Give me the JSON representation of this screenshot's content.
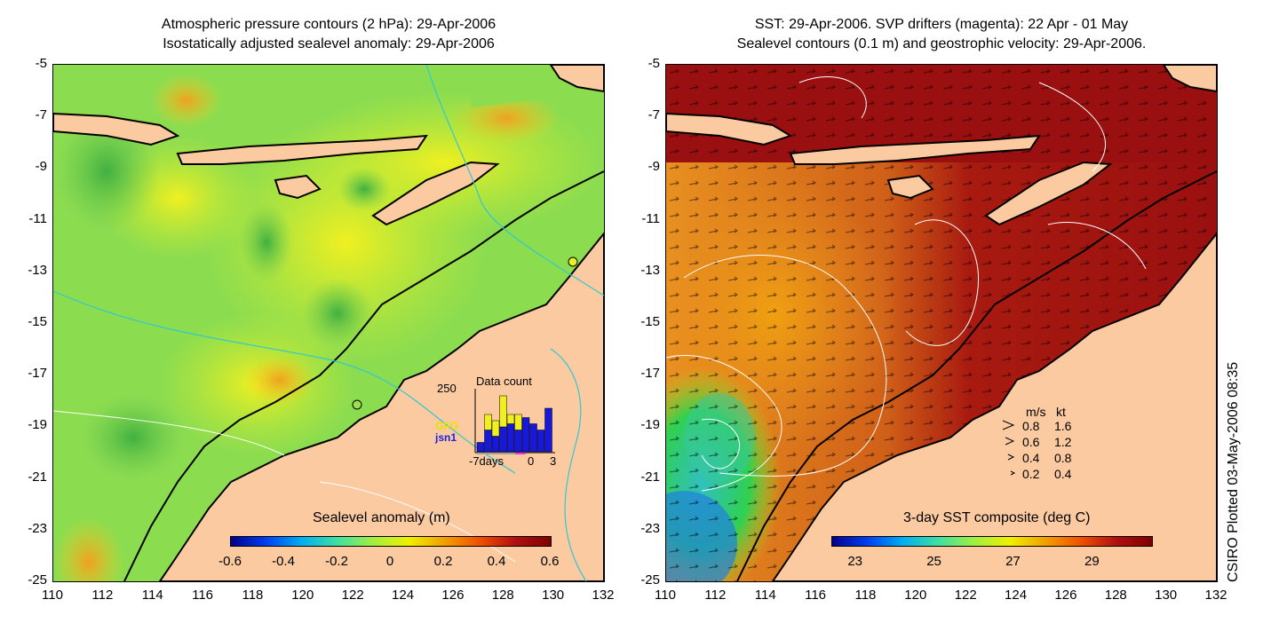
{
  "left_panel": {
    "title_line1": "Atmospheric pressure contours (2 hPa): 29-Apr-2006",
    "title_line2": "Isostatically adjusted sealevel anomaly: 29-Apr-2006",
    "colorbar_label": "Sealevel anomaly (m)",
    "colorbar_ticks": [
      "-0.6",
      "-0.4",
      "-0.2",
      "0",
      "0.2",
      "0.4",
      "0.6"
    ],
    "inset": {
      "title": "Data count",
      "y_max_label": "250",
      "x_labels": [
        "-7days",
        "0",
        "3"
      ],
      "legend": [
        "GFO",
        "jsn1"
      ],
      "bars_jsn1": [
        0.15,
        0.35,
        0.25,
        0.4,
        0.45,
        0.35,
        0.55,
        0.45,
        0.35,
        0.7
      ],
      "bars_gfo": [
        0.0,
        0.25,
        0.25,
        0.5,
        0.15,
        0.25,
        0.0,
        0.0,
        0.0,
        0.0
      ]
    }
  },
  "right_panel": {
    "title_line1": "SST: 29-Apr-2006. SVP drifters (magenta): 22 Apr - 01 May",
    "title_line2": "Sealevel contours (0.1 m) and geostrophic velocity: 29-Apr-2006.",
    "colorbar_label": "3-day SST composite (deg C)",
    "colorbar_ticks": [
      "23",
      "25",
      "27",
      "29"
    ],
    "speed_legend": {
      "header_ms": "m/s",
      "header_kt": "kt",
      "rows": [
        {
          "ms": "0.8",
          "kt": "1.6"
        },
        {
          "ms": "0.6",
          "kt": "1.2"
        },
        {
          "ms": "0.4",
          "kt": "0.8"
        },
        {
          "ms": "0.2",
          "kt": "0.4"
        }
      ]
    }
  },
  "y_ticks": [
    "-5",
    "-7",
    "-9",
    "-11",
    "-13",
    "-15",
    "-17",
    "-19",
    "-21",
    "-23",
    "-25"
  ],
  "x_ticks": [
    "110",
    "112",
    "114",
    "116",
    "118",
    "120",
    "122",
    "124",
    "126",
    "128",
    "130",
    "132"
  ],
  "credit": "CSIRO Plotted 03-May-2006 08:35",
  "colors": {
    "land": "#fbcaa0",
    "sla_green": "#9be04a",
    "sla_yellow": "#e8f020",
    "sst_red": "#a01010",
    "sst_orange": "#e8780a",
    "sst_cyan": "#28c0d0"
  }
}
